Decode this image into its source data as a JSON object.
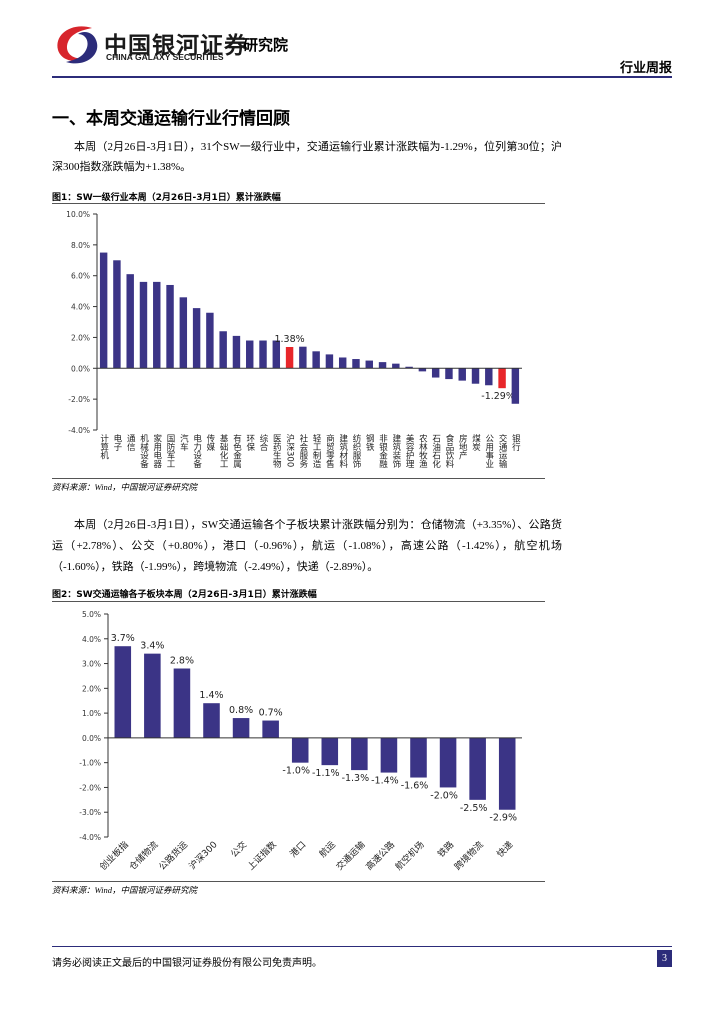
{
  "header": {
    "company": "中国银河证券",
    "company_en": "CHINA GALAXY SECURITIES",
    "division": "研究院",
    "report_type": "行业周报"
  },
  "section_title": "一、本周交通运输行业行情回顾",
  "paragraphs": [
    "本周（2月26日-3月1日），31个SW一级行业中，交通运输行业累计涨跌幅为-1.29%，位列第30位；沪深300指数涨跌幅为+1.38%。",
    "本周（2月26日-3月1日），SW交通运输各个子板块累计涨跌幅分别为：仓储物流（+3.35%）、公路货运（+2.78%）、公交（+0.80%），港口（-0.96%），航运（-1.08%），高速公路（-1.42%），航空机场（-1.60%），铁路（-1.99%），跨境物流（-2.49%），快递（-2.89%）。"
  ],
  "chart_data": [
    {
      "type": "bar",
      "title": "图1：SW一级行业本周（2月26日-3月1日）累计涨跌幅",
      "source": "资料来源：Wind，中国银河证券研究院",
      "categories": [
        "计算机",
        "电子",
        "通信",
        "机械设备",
        "家用电器",
        "国防军工",
        "汽车",
        "电力设备",
        "传媒",
        "基础化工",
        "有色金属",
        "环保",
        "综合",
        "医药生物",
        "沪深300",
        "社会服务",
        "轻工制造",
        "商贸零售",
        "建筑材料",
        "纺织服饰",
        "钢铁",
        "非银金融",
        "建筑装饰",
        "美容护理",
        "农林牧渔",
        "石油石化",
        "食品饮料",
        "房地产",
        "煤炭",
        "公用事业",
        "交通运输",
        "银行"
      ],
      "values": [
        7.5,
        7.0,
        6.1,
        5.6,
        5.6,
        5.4,
        4.6,
        3.9,
        3.6,
        2.4,
        2.1,
        1.8,
        1.8,
        1.8,
        1.38,
        1.4,
        1.1,
        0.9,
        0.7,
        0.6,
        0.5,
        0.4,
        0.3,
        0.1,
        -0.2,
        -0.6,
        -0.7,
        -0.8,
        -1.0,
        -1.1,
        -1.29,
        -2.3
      ],
      "value_labels": [
        null,
        null,
        null,
        null,
        null,
        null,
        null,
        null,
        null,
        null,
        null,
        null,
        null,
        null,
        "1.38%",
        null,
        null,
        null,
        null,
        null,
        null,
        null,
        null,
        null,
        null,
        null,
        null,
        null,
        null,
        null,
        "-1.29%",
        null
      ],
      "colors": [
        "#3b3486",
        "#3b3486",
        "#3b3486",
        "#3b3486",
        "#3b3486",
        "#3b3486",
        "#3b3486",
        "#3b3486",
        "#3b3486",
        "#3b3486",
        "#3b3486",
        "#3b3486",
        "#3b3486",
        "#3b3486",
        "#e8262a",
        "#3b3486",
        "#3b3486",
        "#3b3486",
        "#3b3486",
        "#3b3486",
        "#3b3486",
        "#3b3486",
        "#3b3486",
        "#3b3486",
        "#3b3486",
        "#3b3486",
        "#3b3486",
        "#3b3486",
        "#3b3486",
        "#3b3486",
        "#e8262a",
        "#3b3486"
      ],
      "ylim": [
        -4,
        10
      ],
      "yticks": [
        {
          "value": -4,
          "label": "-4.0%"
        },
        {
          "value": -2,
          "label": "-2.0%"
        },
        {
          "value": 0,
          "label": "0.0%"
        },
        {
          "value": 2,
          "label": "2.0%"
        },
        {
          "value": 4,
          "label": "4.0%"
        },
        {
          "value": 6,
          "label": "6.0%"
        },
        {
          "value": 8,
          "label": "8.0%"
        },
        {
          "value": 10,
          "label": "10.0%"
        }
      ],
      "label_orientation": "vertical"
    },
    {
      "type": "bar",
      "title": "图2：SW交通运输各子板块本周（2月26日-3月1日）累计涨跌幅",
      "source": "资料来源：Wind，中国银河证券研究院",
      "categories": [
        "创业板指",
        "仓储物流",
        "公路货运",
        "沪深300",
        "公交",
        "上证指数",
        "港口",
        "航运",
        "交通运输",
        "高速公路",
        "航空机场",
        "铁路",
        "跨境物流",
        "快递"
      ],
      "values": [
        3.7,
        3.4,
        2.8,
        1.4,
        0.8,
        0.7,
        -1.0,
        -1.1,
        -1.3,
        -1.4,
        -1.6,
        -2.0,
        -2.5,
        -2.9
      ],
      "value_labels": [
        "3.7%",
        "3.4%",
        "2.8%",
        "1.4%",
        "0.8%",
        "0.7%",
        "-1.0%",
        "-1.1%",
        "-1.3%",
        "-1.4%",
        "-1.6%",
        "-2.0%",
        "-2.5%",
        "-2.9%"
      ],
      "color": "#3b3486",
      "ylim": [
        -4,
        5
      ],
      "yticks": [
        {
          "value": -4,
          "label": "-4.0%"
        },
        {
          "value": -3,
          "label": "-3.0%"
        },
        {
          "value": -2,
          "label": "-2.0%"
        },
        {
          "value": -1,
          "label": "-1.0%"
        },
        {
          "value": 0,
          "label": "0.0%"
        },
        {
          "value": 1,
          "label": "1.0%"
        },
        {
          "value": 2,
          "label": "2.0%"
        },
        {
          "value": 3,
          "label": "3.0%"
        },
        {
          "value": 4,
          "label": "4.0%"
        },
        {
          "value": 5,
          "label": "5.0%"
        }
      ],
      "label_orientation": "diagonal"
    }
  ],
  "footer": {
    "disclaimer": "请务必阅读正文最后的中国银河证券股份有限公司免责声明。",
    "page": "3"
  }
}
